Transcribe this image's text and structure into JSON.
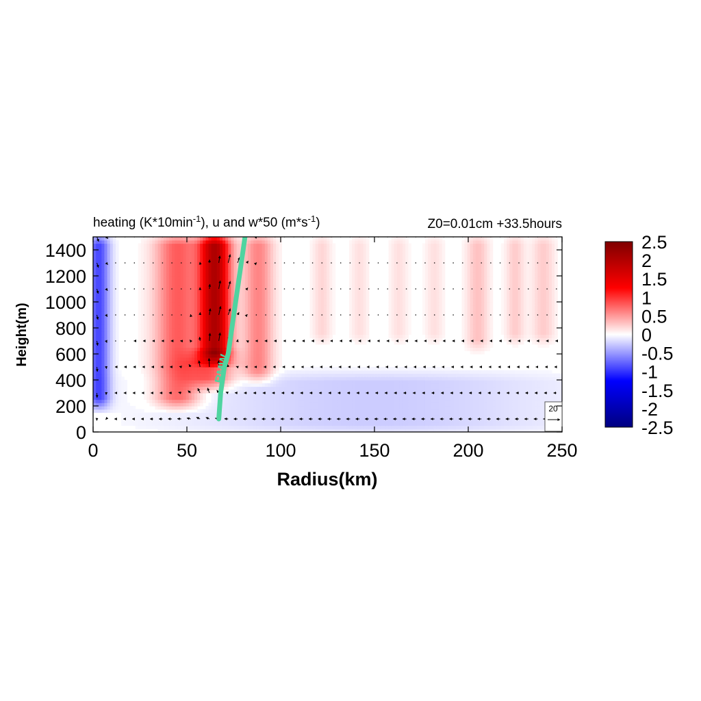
{
  "chart_data": {
    "type": "heatmap",
    "title_left_main": "heating (K*10min",
    "title_left_sup1": "-1",
    "title_left_mid": "), u and w*50 (m*s",
    "title_left_sup2": "-1",
    "title_left_end": ")",
    "title_right": "Z0=0.01cm  +33.5hours",
    "xlabel": "Radius(km)",
    "ylabel": "Height(m)",
    "xlim": [
      0,
      250
    ],
    "ylim": [
      0,
      1500
    ],
    "x_ticks": [
      "0",
      "50",
      "100",
      "150",
      "200",
      "250"
    ],
    "y_ticks": [
      "0",
      "200",
      "400",
      "600",
      "800",
      "1000",
      "1200",
      "1400"
    ],
    "colorbar": {
      "min": -2.5,
      "max": 2.5,
      "tick_labels": [
        "2.5",
        "2",
        "1.5",
        "1",
        "0.5",
        "0",
        "-0.5",
        "-1",
        "-1.5",
        "-2",
        "-2.5"
      ]
    },
    "colormap": [
      "#00007f",
      "#0000ff",
      "#ffffff",
      "#ff0000",
      "#7f0000"
    ],
    "heating_bands": [
      {
        "r_center": 3,
        "r_width": 6,
        "amp": -0.9,
        "z_lo": 200,
        "z_hi": 1500
      },
      {
        "r_center": 45,
        "r_width": 12,
        "amp": 0.8,
        "z_lo": 200,
        "z_hi": 1500
      },
      {
        "r_center": 65,
        "r_width": 8,
        "amp": 2.0,
        "z_lo": 550,
        "z_hi": 1500
      },
      {
        "r_center": 63,
        "r_width": 12,
        "amp": 0.8,
        "z_lo": 350,
        "z_hi": 600
      },
      {
        "r_center": 88,
        "r_width": 8,
        "amp": 0.6,
        "z_lo": 400,
        "z_hi": 1500
      },
      {
        "r_center": 150,
        "r_width": 100,
        "amp": -0.25,
        "z_lo": 0,
        "z_hi": 450
      },
      {
        "r_center": 122,
        "r_width": 5,
        "amp": 0.2,
        "z_lo": 700,
        "z_hi": 1500
      },
      {
        "r_center": 142,
        "r_width": 5,
        "amp": 0.15,
        "z_lo": 700,
        "z_hi": 1500
      },
      {
        "r_center": 163,
        "r_width": 5,
        "amp": 0.15,
        "z_lo": 700,
        "z_hi": 1500
      },
      {
        "r_center": 182,
        "r_width": 5,
        "amp": 0.15,
        "z_lo": 700,
        "z_hi": 1500
      },
      {
        "r_center": 205,
        "r_width": 6,
        "amp": 0.3,
        "z_lo": 650,
        "z_hi": 1500
      },
      {
        "r_center": 225,
        "r_width": 5,
        "amp": 0.25,
        "z_lo": 700,
        "z_hi": 1500
      },
      {
        "r_center": 240,
        "r_width": 6,
        "amp": 0.25,
        "z_lo": 700,
        "z_hi": 1500
      }
    ],
    "vector_levels": [
      100,
      300,
      500,
      700,
      900,
      1100,
      1300,
      1500
    ],
    "vector_radius_step": 5,
    "reference_vector": {
      "label": "20",
      "magnitude": 20
    },
    "rmw": {
      "label": "RMW",
      "color": "#4fd4a0",
      "points": [
        [
          67,
          100
        ],
        [
          68,
          300
        ],
        [
          70,
          500
        ],
        [
          72,
          600
        ],
        [
          74,
          800
        ],
        [
          76,
          1000
        ],
        [
          78,
          1200
        ],
        [
          80,
          1400
        ],
        [
          81,
          1500
        ]
      ]
    }
  }
}
